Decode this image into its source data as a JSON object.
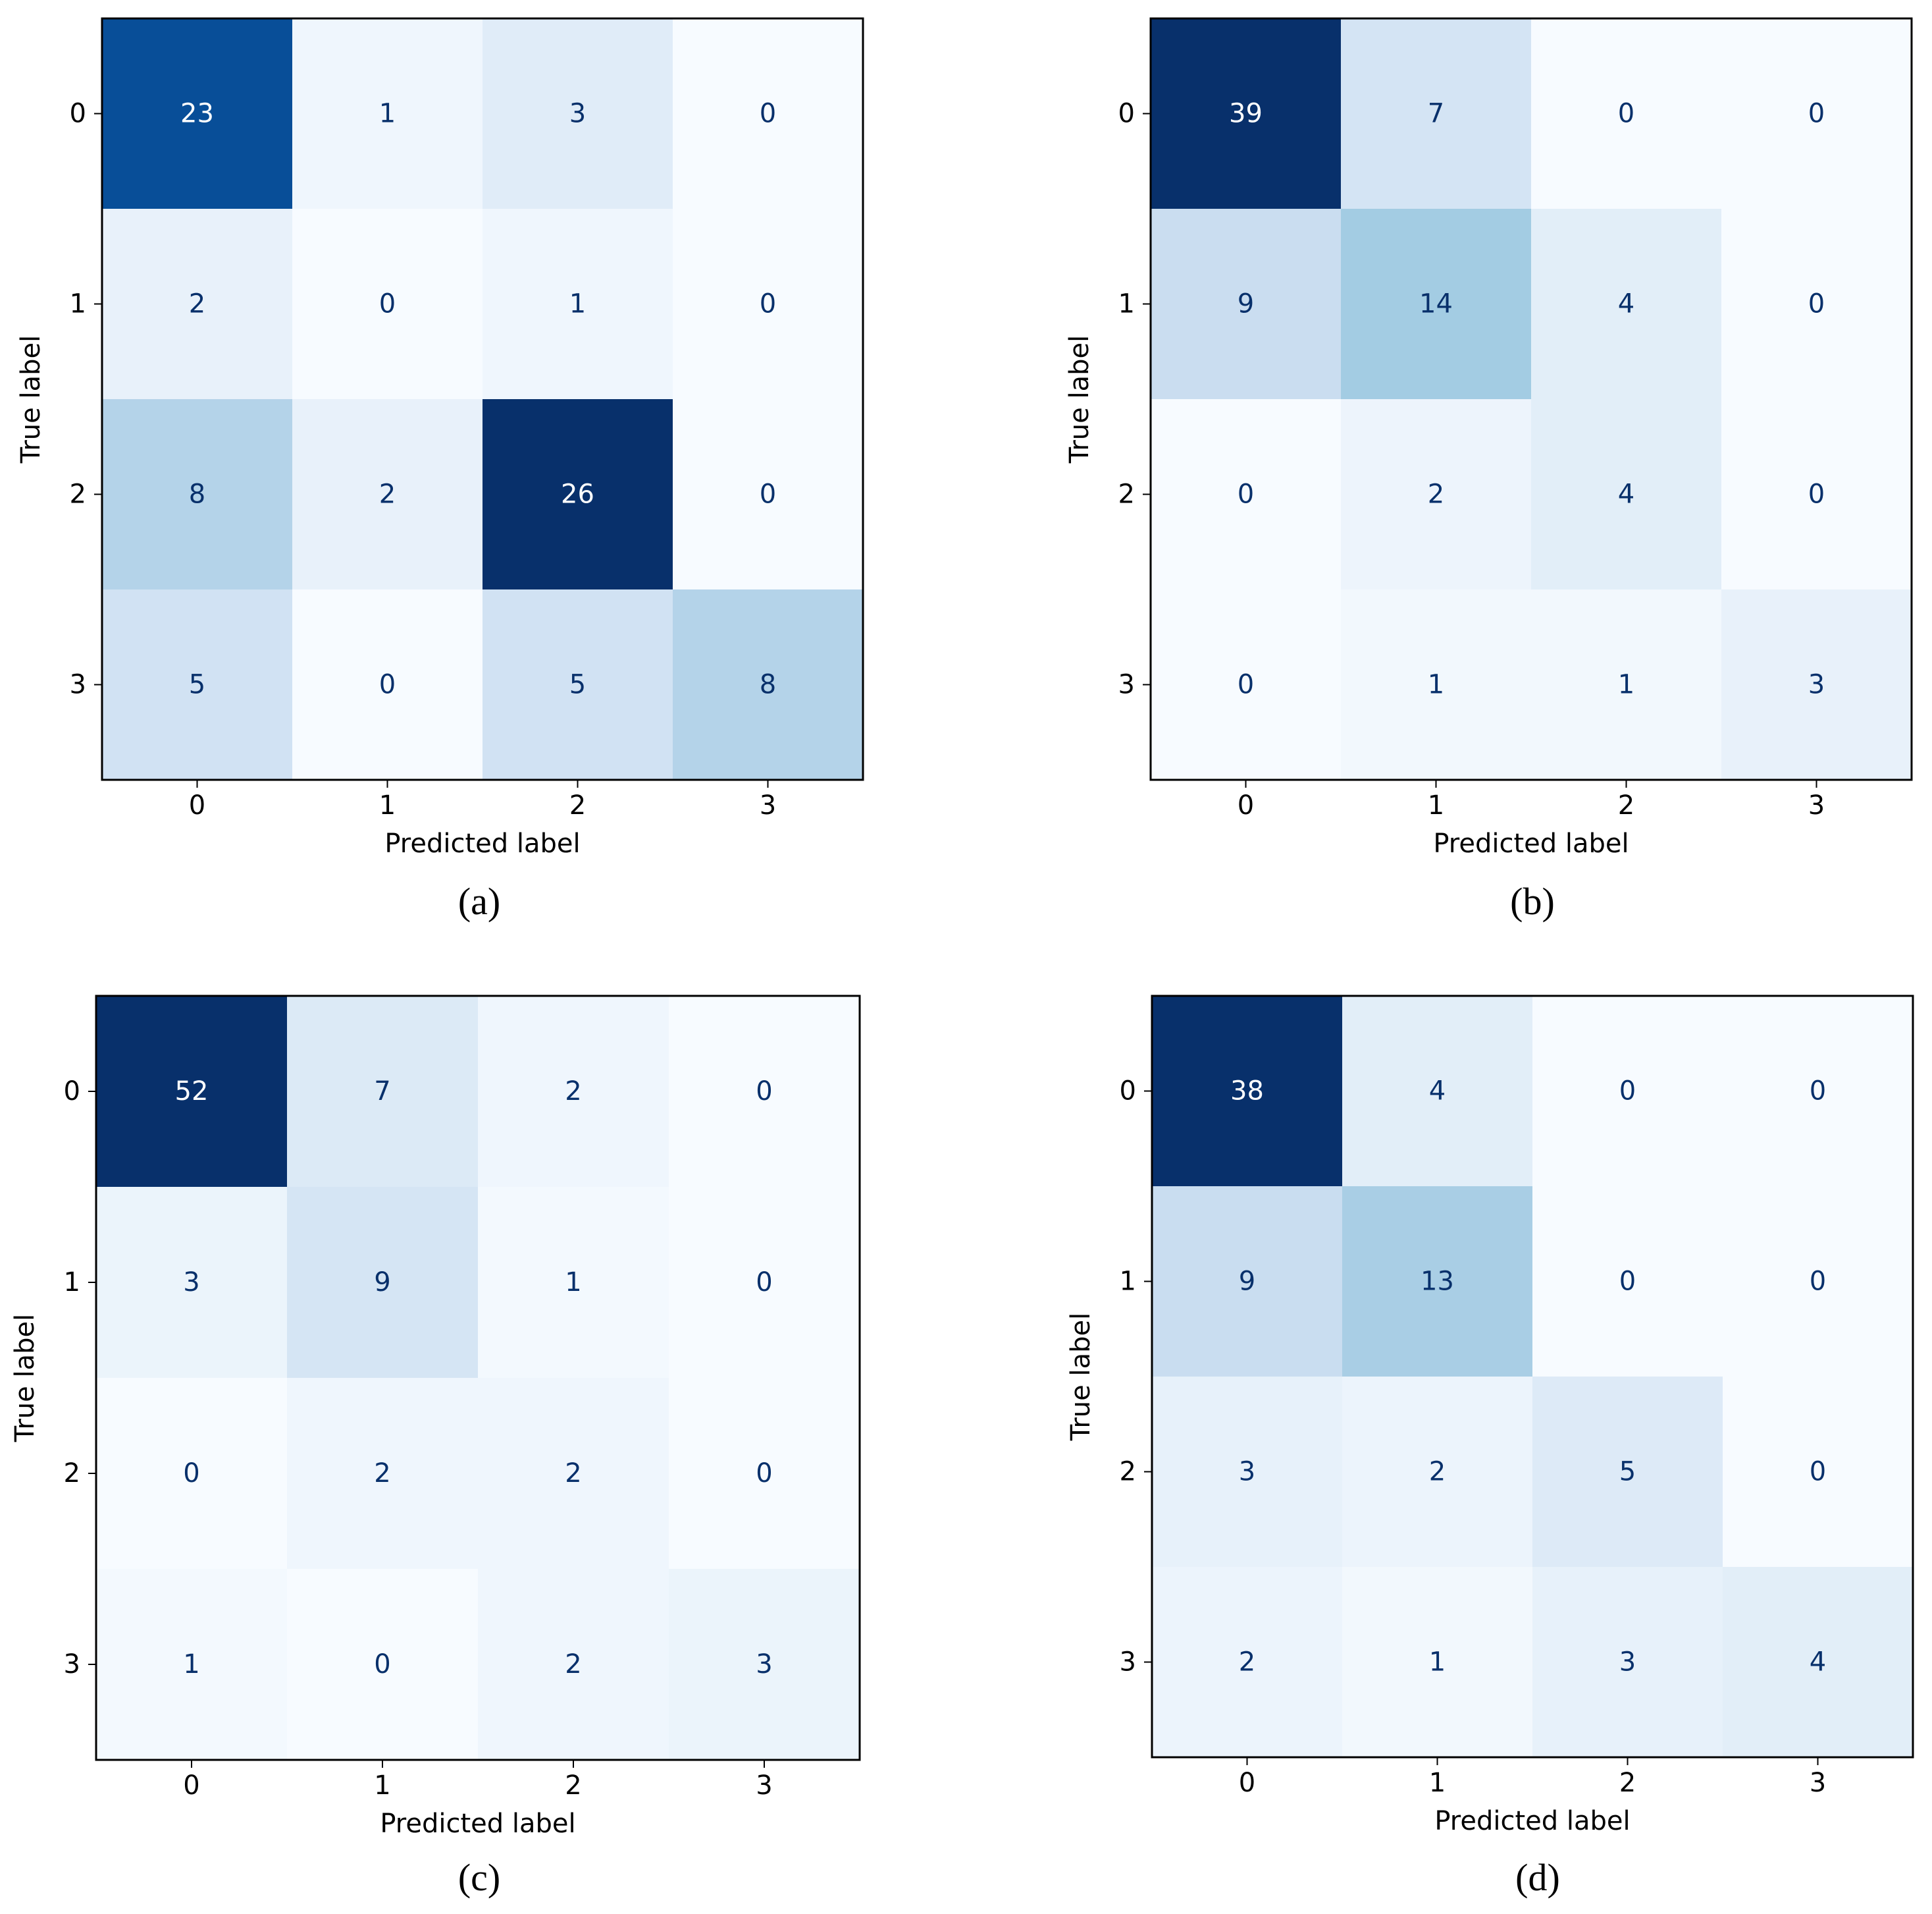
{
  "colormap": "Blues",
  "text_color_light": "#ffffff",
  "text_color_dark": "#08306b",
  "chart_data": [
    {
      "type": "heatmap",
      "caption": "(a)",
      "xlabel": "Predicted label",
      "ylabel": "True label",
      "x_ticks": [
        "0",
        "1",
        "2",
        "3"
      ],
      "y_ticks": [
        "0",
        "1",
        "2",
        "3"
      ],
      "matrix": [
        [
          23,
          1,
          3,
          0
        ],
        [
          2,
          0,
          1,
          0
        ],
        [
          8,
          2,
          26,
          0
        ],
        [
          5,
          0,
          5,
          8
        ]
      ]
    },
    {
      "type": "heatmap",
      "caption": "(b)",
      "xlabel": "Predicted label",
      "ylabel": "True label",
      "x_ticks": [
        "0",
        "1",
        "2",
        "3"
      ],
      "y_ticks": [
        "0",
        "1",
        "2",
        "3"
      ],
      "matrix": [
        [
          39,
          7,
          0,
          0
        ],
        [
          9,
          14,
          4,
          0
        ],
        [
          0,
          2,
          4,
          0
        ],
        [
          0,
          1,
          1,
          3
        ]
      ]
    },
    {
      "type": "heatmap",
      "caption": "(c)",
      "xlabel": "Predicted label",
      "ylabel": "True label",
      "x_ticks": [
        "0",
        "1",
        "2",
        "3"
      ],
      "y_ticks": [
        "0",
        "1",
        "2",
        "3"
      ],
      "matrix": [
        [
          52,
          7,
          2,
          0
        ],
        [
          3,
          9,
          1,
          0
        ],
        [
          0,
          2,
          2,
          0
        ],
        [
          1,
          0,
          2,
          3
        ]
      ]
    },
    {
      "type": "heatmap",
      "caption": "(d)",
      "xlabel": "Predicted label",
      "ylabel": "True label",
      "x_ticks": [
        "0",
        "1",
        "2",
        "3"
      ],
      "y_ticks": [
        "0",
        "1",
        "2",
        "3"
      ],
      "matrix": [
        [
          38,
          4,
          0,
          0
        ],
        [
          9,
          13,
          0,
          0
        ],
        [
          3,
          2,
          5,
          0
        ],
        [
          2,
          1,
          3,
          4
        ]
      ]
    }
  ]
}
